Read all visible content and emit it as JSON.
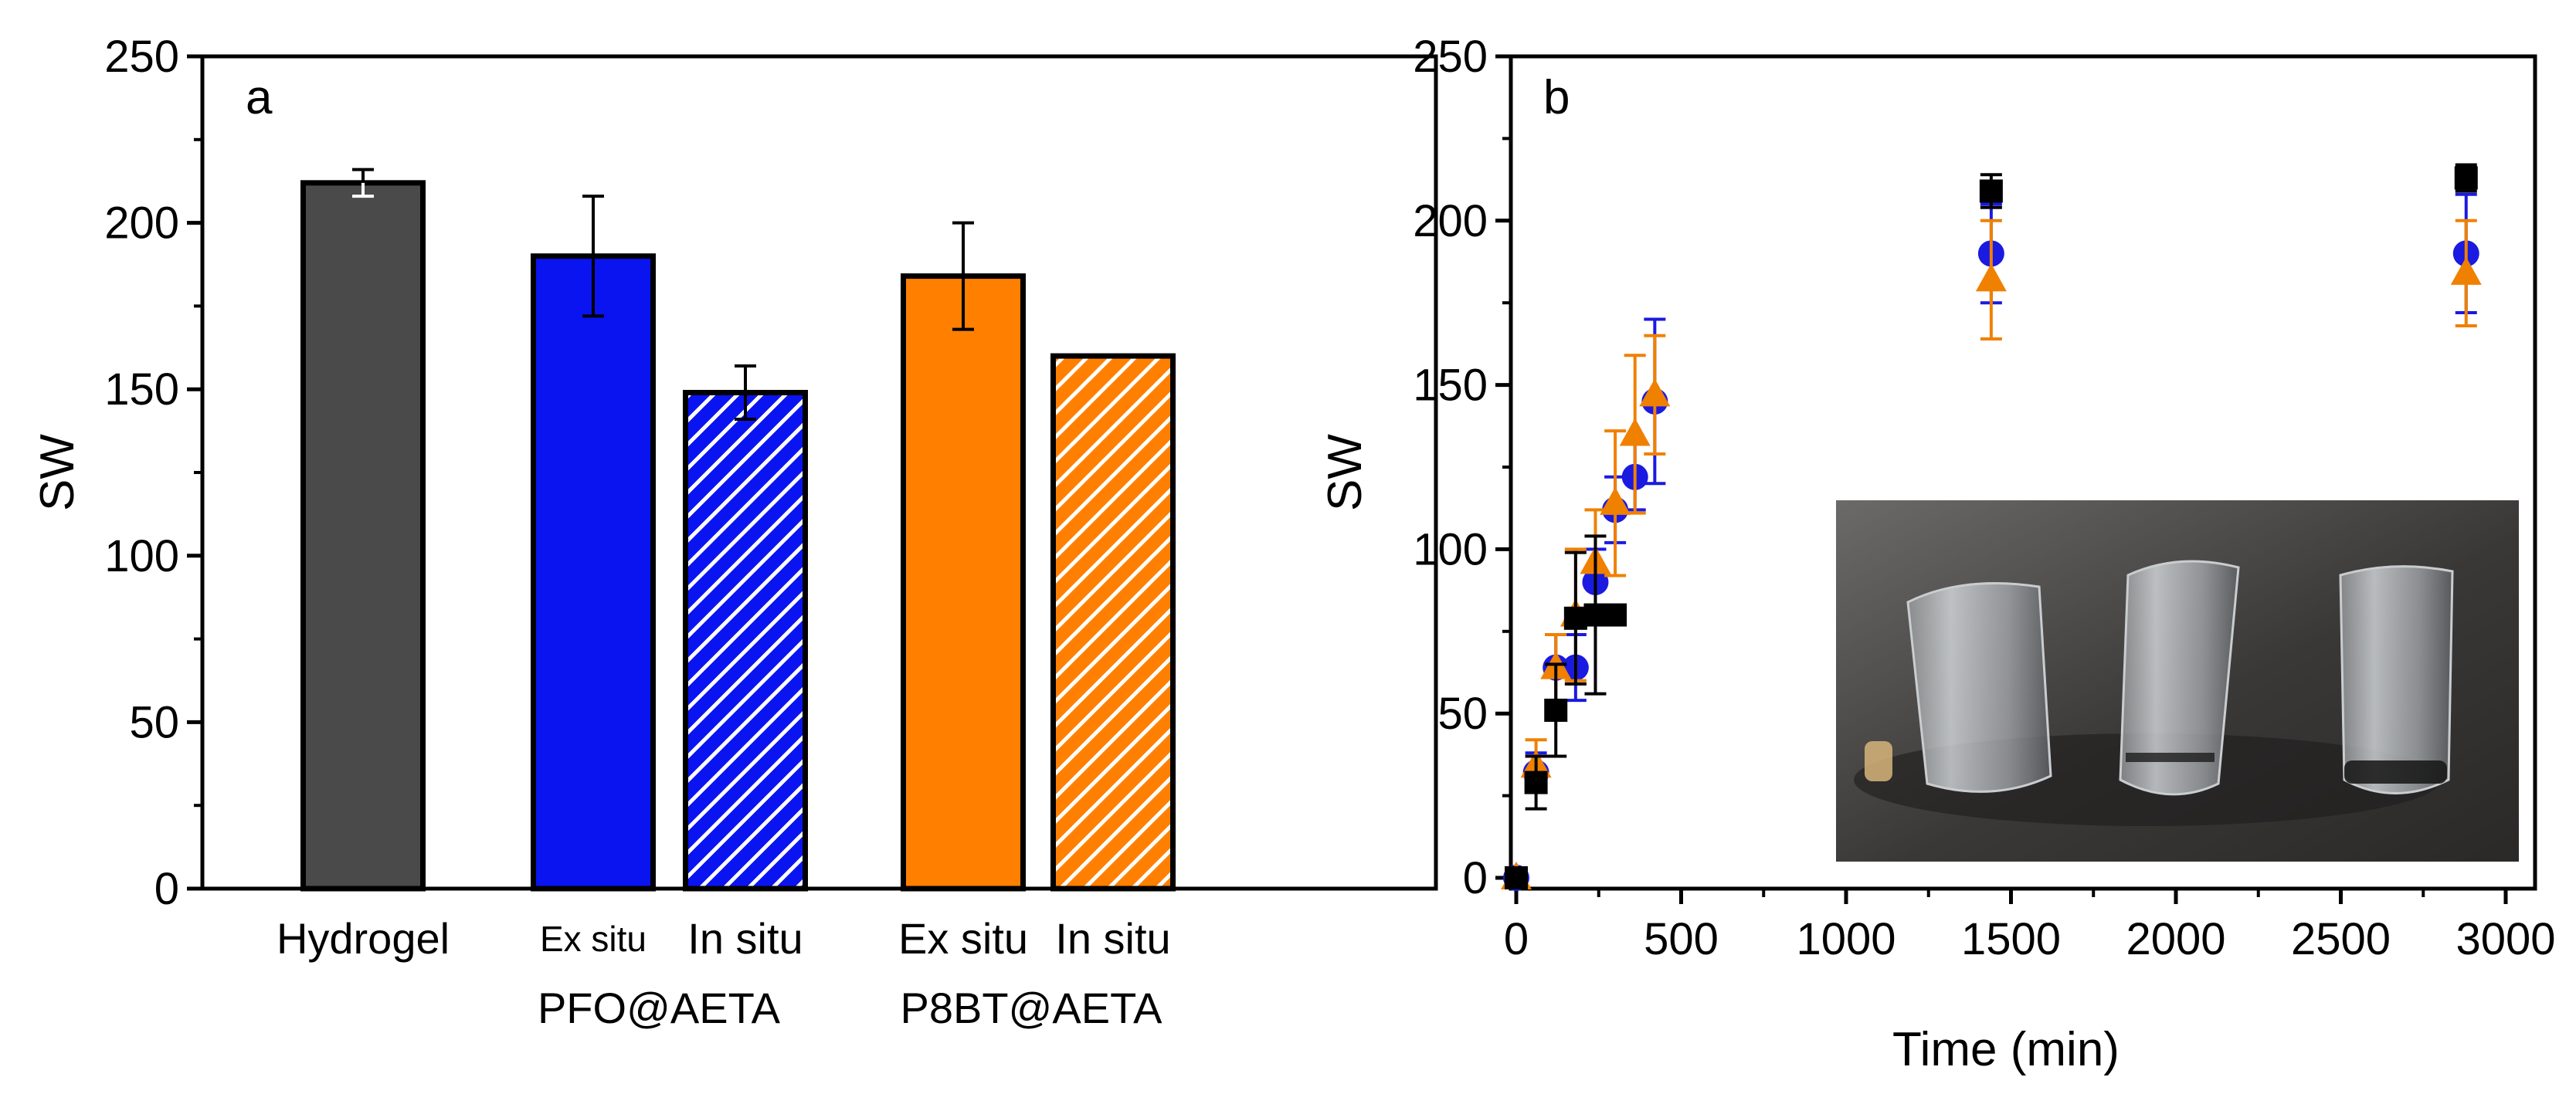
{
  "chart_data": [
    {
      "type": "bar",
      "panel": "a",
      "ylabel": "SW",
      "ylim": [
        0,
        250
      ],
      "yticks": [
        "0",
        "50",
        "100",
        "150",
        "200",
        "250"
      ],
      "categories": [
        "Hydrogel",
        "Ex situ",
        "In situ",
        "Ex situ",
        "In situ"
      ],
      "group_labels": [
        "PFO@AETA",
        "P8BT@AETA"
      ],
      "values": [
        212,
        190,
        149,
        184,
        160
      ],
      "errors": [
        4,
        18,
        8,
        16,
        0
      ],
      "colors": [
        "#4a4a4a",
        "#0a14f0",
        "#0a14f0",
        "#ff8000",
        "#ff8000"
      ],
      "hatched": [
        false,
        false,
        true,
        false,
        true
      ],
      "grid": false
    },
    {
      "type": "scatter",
      "panel": "b",
      "xlabel": "Time (min)",
      "ylabel": "SW",
      "xlim": [
        0,
        3250
      ],
      "ylim": [
        0,
        250
      ],
      "xticks": [
        "0",
        "500",
        "1000",
        "1500",
        "2000",
        "2500",
        "3000"
      ],
      "yticks": [
        "0",
        "50",
        "100",
        "150",
        "200",
        "250"
      ],
      "series": [
        {
          "marker": "square",
          "color": "#000000",
          "x": [
            0,
            60,
            120,
            180,
            240,
            300,
            1440,
            2880
          ],
          "y": [
            0,
            29,
            51,
            79,
            80,
            80,
            209,
            213
          ],
          "err": [
            0,
            8,
            14,
            20,
            24,
            0,
            5,
            4
          ]
        },
        {
          "marker": "circle",
          "color": "#1a1ae0",
          "x": [
            0,
            60,
            120,
            180,
            240,
            300,
            360,
            420,
            1440,
            2880
          ],
          "y": [
            0,
            32,
            64,
            64,
            90,
            112,
            122,
            145,
            190,
            190
          ],
          "err": [
            0,
            6,
            10,
            10,
            10,
            10,
            10,
            25,
            15,
            18
          ]
        },
        {
          "marker": "triangle",
          "color": "#f08000",
          "x": [
            0,
            60,
            120,
            180,
            240,
            300,
            360,
            420,
            1440,
            2880
          ],
          "y": [
            0,
            34,
            64,
            80,
            96,
            114,
            135,
            147,
            182,
            184
          ],
          "err": [
            0,
            8,
            10,
            20,
            16,
            22,
            24,
            18,
            18,
            16
          ]
        }
      ],
      "inset_image": "photo of four swollen transparent hydrogel cylinders on a dark surface",
      "grid": false
    }
  ],
  "panel_a": {
    "letter": "a",
    "ylabel": "SW",
    "cat_hydrogel": "Hydrogel",
    "cat_exsitu_1": "Ex situ",
    "cat_insitu_1": "In situ",
    "cat_exsitu_2": "Ex situ",
    "cat_insitu_2": "In situ",
    "group_1": "PFO@AETA",
    "group_2": "P8BT@AETA"
  },
  "panel_b": {
    "letter": "b",
    "ylabel": "SW",
    "xlabel": "Time (min)"
  }
}
